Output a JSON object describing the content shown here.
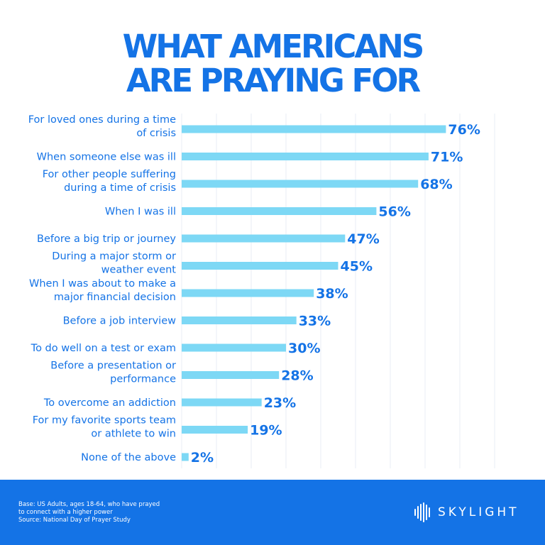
{
  "title_lines": [
    "WHAT AMERICANS",
    "ARE PRAYING FOR"
  ],
  "chart_data": {
    "type": "bar",
    "orientation": "horizontal",
    "title": "WHAT AMERICANS ARE PRAYING FOR",
    "categories": [
      [
        "For loved ones during a time",
        "of crisis"
      ],
      [
        "When someone else was ill"
      ],
      [
        "For other people suffering",
        "during a time of crisis"
      ],
      [
        "When I was ill"
      ],
      [
        "Before a big trip or journey"
      ],
      [
        "During a major storm or",
        "weather event"
      ],
      [
        "When I was about to make a",
        "major financial decision"
      ],
      [
        "Before a job interview"
      ],
      [
        "To do well on a test or exam"
      ],
      [
        "Before a presentation or",
        "performance"
      ],
      [
        "To overcome an addiction"
      ],
      [
        "For my favorite sports team",
        "or athlete to win"
      ],
      [
        "None of the above"
      ]
    ],
    "values": [
      76,
      71,
      68,
      56,
      47,
      45,
      38,
      33,
      30,
      28,
      23,
      19,
      2
    ],
    "value_labels": [
      "76%",
      "71%",
      "68%",
      "56%",
      "47%",
      "45%",
      "38%",
      "33%",
      "30%",
      "28%",
      "23%",
      "19%",
      "2%"
    ],
    "xlim": [
      0,
      90
    ],
    "grid": true,
    "bar_color": "#7dd8f5",
    "grid_color": "#e8eef4",
    "text_color": "#1473e6"
  },
  "footer": {
    "background": "#1473e6",
    "note_lines": [
      "Base: US Adults, ages 18-64, who have prayed",
      "to connect with a higher power",
      "Source: National Day of Prayer Study"
    ],
    "logo_text": "SKYLIGHT",
    "logo_icon": "waveform-logo-icon"
  }
}
